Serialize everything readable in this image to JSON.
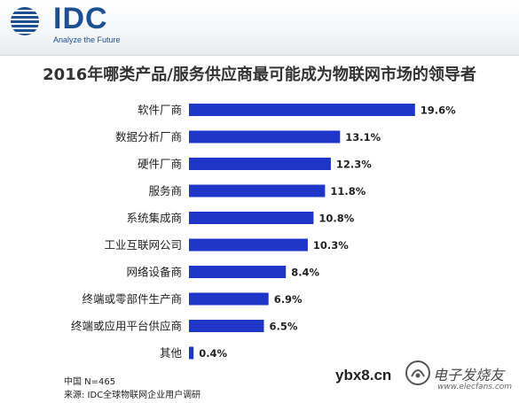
{
  "header": {
    "logo_text": "IDC",
    "tagline": "Analyze the Future"
  },
  "chart_data": {
    "type": "bar",
    "orientation": "horizontal",
    "title": "2016年哪类产品/服务供应商最可能成为物联网市场的领导者",
    "categories": [
      "软件厂商",
      "数据分析厂商",
      "硬件厂商",
      "服务商",
      "系统集成商",
      "工业互联网公司",
      "网络设备商",
      "终端或零部件生产商",
      "终端或应用平台供应商",
      "其他"
    ],
    "values": [
      19.6,
      13.1,
      12.3,
      11.8,
      10.8,
      10.3,
      8.4,
      6.9,
      6.5,
      0.4
    ],
    "value_labels": [
      "19.6%",
      "13.1%",
      "12.3%",
      "11.8%",
      "10.8%",
      "10.3%",
      "8.4%",
      "6.9%",
      "6.5%",
      "0.4%"
    ],
    "xlim": [
      0,
      20
    ],
    "grid": false,
    "bar_color": "#1f35c8"
  },
  "footnotes": {
    "sample": "中国 N=465",
    "source": "来源: IDC全球物联网企业用户调研"
  },
  "watermark": {
    "site": "ybx8.cn",
    "brand": "电子发烧友",
    "url": "www.elecfans.com"
  }
}
